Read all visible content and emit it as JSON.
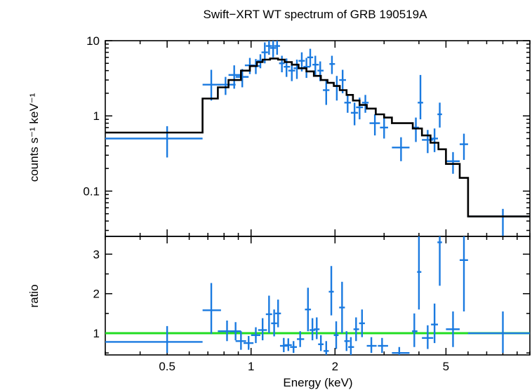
{
  "chart_data": {
    "type": "scatter",
    "title": "Swift−XRT WT spectrum of GRB 190519A",
    "xlabel": "Energy (keV)",
    "x_scale": "log",
    "xlim": [
      0.3,
      10
    ],
    "x_ticks": [
      {
        "v": 0.5,
        "label": "0.5"
      },
      {
        "v": 1,
        "label": "1"
      },
      {
        "v": 2,
        "label": "2"
      },
      {
        "v": 5,
        "label": "5"
      }
    ],
    "colors": {
      "data": "#1a7ae0",
      "model": "#000000",
      "unity": "#22dd22",
      "axes": "#000000"
    },
    "panels": [
      {
        "id": "spectrum",
        "ylabel": "counts s⁻¹ keV⁻¹",
        "y_scale": "log",
        "ylim": [
          0.025,
          10
        ],
        "y_ticks": [
          {
            "v": 0.1,
            "label": "0.1"
          },
          {
            "v": 1,
            "label": "1"
          },
          {
            "v": 10,
            "label": "10"
          }
        ],
        "data": [
          {
            "x": 0.5,
            "xlo": 0.3,
            "xhi": 0.67,
            "y": 0.5,
            "ylo": 0.28,
            "yhi": 0.73
          },
          {
            "x": 0.72,
            "xlo": 0.67,
            "xhi": 0.78,
            "y": 2.6,
            "ylo": 1.6,
            "yhi": 4.1
          },
          {
            "x": 0.81,
            "xlo": 0.76,
            "xhi": 0.88,
            "y": 2.6,
            "ylo": 1.9,
            "yhi": 3.3
          },
          {
            "x": 0.87,
            "xlo": 0.83,
            "xhi": 0.92,
            "y": 3.5,
            "ylo": 2.3,
            "yhi": 4.7
          },
          {
            "x": 0.93,
            "xlo": 0.88,
            "xhi": 0.98,
            "y": 3.3,
            "ylo": 2.4,
            "yhi": 4.2
          },
          {
            "x": 0.99,
            "xlo": 0.95,
            "xhi": 1.03,
            "y": 4.7,
            "ylo": 3.6,
            "yhi": 5.9
          },
          {
            "x": 1.04,
            "xlo": 1.01,
            "xhi": 1.08,
            "y": 4.6,
            "ylo": 3.6,
            "yhi": 5.7
          },
          {
            "x": 1.08,
            "xlo": 1.05,
            "xhi": 1.11,
            "y": 5.4,
            "ylo": 4.3,
            "yhi": 6.6
          },
          {
            "x": 1.12,
            "xlo": 1.09,
            "xhi": 1.15,
            "y": 7.0,
            "ylo": 5.0,
            "yhi": 9.5
          },
          {
            "x": 1.16,
            "xlo": 1.13,
            "xhi": 1.19,
            "y": 8.5,
            "ylo": 6.5,
            "yhi": 10.5
          },
          {
            "x": 1.2,
            "xlo": 1.17,
            "xhi": 1.23,
            "y": 8.0,
            "ylo": 6.0,
            "yhi": 10.3
          },
          {
            "x": 1.24,
            "xlo": 1.21,
            "xhi": 1.27,
            "y": 8.5,
            "ylo": 6.5,
            "yhi": 10.4
          },
          {
            "x": 1.29,
            "xlo": 1.26,
            "xhi": 1.32,
            "y": 5.0,
            "ylo": 3.8,
            "yhi": 6.3
          },
          {
            "x": 1.34,
            "xlo": 1.31,
            "xhi": 1.38,
            "y": 4.5,
            "ylo": 3.3,
            "yhi": 5.8
          },
          {
            "x": 1.4,
            "xlo": 1.36,
            "xhi": 1.44,
            "y": 4.0,
            "ylo": 2.9,
            "yhi": 5.3
          },
          {
            "x": 1.46,
            "xlo": 1.42,
            "xhi": 1.5,
            "y": 4.3,
            "ylo": 3.1,
            "yhi": 5.6
          },
          {
            "x": 1.52,
            "xlo": 1.48,
            "xhi": 1.56,
            "y": 5.4,
            "ylo": 3.9,
            "yhi": 7.0
          },
          {
            "x": 1.58,
            "xlo": 1.54,
            "xhi": 1.63,
            "y": 4.5,
            "ylo": 3.2,
            "yhi": 5.9
          },
          {
            "x": 1.63,
            "xlo": 1.59,
            "xhi": 1.67,
            "y": 6.0,
            "ylo": 4.5,
            "yhi": 7.8
          },
          {
            "x": 1.7,
            "xlo": 1.66,
            "xhi": 1.75,
            "y": 4.8,
            "ylo": 3.5,
            "yhi": 6.3
          },
          {
            "x": 1.77,
            "xlo": 1.73,
            "xhi": 1.82,
            "y": 4.0,
            "ylo": 2.9,
            "yhi": 5.3
          },
          {
            "x": 1.86,
            "xlo": 1.81,
            "xhi": 1.91,
            "y": 2.2,
            "ylo": 1.4,
            "yhi": 3.0
          },
          {
            "x": 1.95,
            "xlo": 1.91,
            "xhi": 2.0,
            "y": 4.9,
            "ylo": 3.6,
            "yhi": 6.3
          },
          {
            "x": 2.03,
            "xlo": 1.98,
            "xhi": 2.08,
            "y": 2.5,
            "ylo": 1.6,
            "yhi": 3.4
          },
          {
            "x": 2.13,
            "xlo": 2.07,
            "xhi": 2.19,
            "y": 3.0,
            "ylo": 2.0,
            "yhi": 4.1
          },
          {
            "x": 2.22,
            "xlo": 2.16,
            "xhi": 2.28,
            "y": 1.5,
            "ylo": 1.1,
            "yhi": 1.9
          },
          {
            "x": 2.35,
            "xlo": 2.28,
            "xhi": 2.42,
            "y": 1.1,
            "ylo": 0.75,
            "yhi": 1.5
          },
          {
            "x": 2.45,
            "xlo": 2.38,
            "xhi": 2.52,
            "y": 1.3,
            "ylo": 0.9,
            "yhi": 1.75
          },
          {
            "x": 2.57,
            "xlo": 2.5,
            "xhi": 2.64,
            "y": 1.5,
            "ylo": 1.1,
            "yhi": 1.9
          },
          {
            "x": 2.78,
            "xlo": 2.66,
            "xhi": 2.9,
            "y": 0.8,
            "ylo": 0.55,
            "yhi": 1.05
          },
          {
            "x": 3.0,
            "xlo": 2.9,
            "xhi": 3.1,
            "y": 0.7,
            "ylo": 0.5,
            "yhi": 0.95
          },
          {
            "x": 3.45,
            "xlo": 3.2,
            "xhi": 3.7,
            "y": 0.38,
            "ylo": 0.25,
            "yhi": 0.52
          },
          {
            "x": 3.9,
            "xlo": 3.8,
            "xhi": 4.0,
            "y": 0.7,
            "ylo": 0.45,
            "yhi": 0.95
          },
          {
            "x": 4.05,
            "xlo": 3.96,
            "xhi": 4.14,
            "y": 1.5,
            "ylo": 0.9,
            "yhi": 3.5
          },
          {
            "x": 4.3,
            "xlo": 4.1,
            "xhi": 4.5,
            "y": 0.48,
            "ylo": 0.32,
            "yhi": 0.65
          },
          {
            "x": 4.55,
            "xlo": 4.42,
            "xhi": 4.68,
            "y": 0.5,
            "ylo": 0.33,
            "yhi": 0.68
          },
          {
            "x": 4.75,
            "xlo": 4.66,
            "xhi": 4.84,
            "y": 1.05,
            "ylo": 0.7,
            "yhi": 1.5
          },
          {
            "x": 5.3,
            "xlo": 5.0,
            "xhi": 5.6,
            "y": 0.25,
            "ylo": 0.17,
            "yhi": 0.33
          },
          {
            "x": 5.8,
            "xlo": 5.6,
            "xhi": 6.0,
            "y": 0.42,
            "ylo": 0.26,
            "yhi": 0.58
          },
          {
            "x": 8.0,
            "xlo": 6.0,
            "xhi": 10.0,
            "y": 0.046,
            "ylo": 0.025,
            "yhi": 0.058
          }
        ],
        "model": [
          [
            0.3,
            0.6
          ],
          [
            0.67,
            0.6
          ],
          [
            0.67,
            1.7
          ],
          [
            0.76,
            1.7
          ],
          [
            0.76,
            2.4
          ],
          [
            0.83,
            2.4
          ],
          [
            0.83,
            3.0
          ],
          [
            0.92,
            3.0
          ],
          [
            0.92,
            4.0
          ],
          [
            0.99,
            4.0
          ],
          [
            0.99,
            4.6
          ],
          [
            1.05,
            4.6
          ],
          [
            1.05,
            5.2
          ],
          [
            1.1,
            5.2
          ],
          [
            1.1,
            5.6
          ],
          [
            1.17,
            5.6
          ],
          [
            1.17,
            5.8
          ],
          [
            1.25,
            5.8
          ],
          [
            1.25,
            5.6
          ],
          [
            1.32,
            5.6
          ],
          [
            1.32,
            5.2
          ],
          [
            1.4,
            5.2
          ],
          [
            1.4,
            4.8
          ],
          [
            1.48,
            4.8
          ],
          [
            1.48,
            4.3
          ],
          [
            1.58,
            4.3
          ],
          [
            1.58,
            3.9
          ],
          [
            1.68,
            3.9
          ],
          [
            1.68,
            3.4
          ],
          [
            1.78,
            3.4
          ],
          [
            1.78,
            3.0
          ],
          [
            1.88,
            3.0
          ],
          [
            1.88,
            2.75
          ],
          [
            1.98,
            2.75
          ],
          [
            1.98,
            2.5
          ],
          [
            2.08,
            2.5
          ],
          [
            2.08,
            2.2
          ],
          [
            2.2,
            2.2
          ],
          [
            2.2,
            1.9
          ],
          [
            2.32,
            1.9
          ],
          [
            2.32,
            1.6
          ],
          [
            2.45,
            1.6
          ],
          [
            2.45,
            1.4
          ],
          [
            2.6,
            1.4
          ],
          [
            2.6,
            1.25
          ],
          [
            2.8,
            1.25
          ],
          [
            2.8,
            1.05
          ],
          [
            3.0,
            1.05
          ],
          [
            3.0,
            0.95
          ],
          [
            3.2,
            0.95
          ],
          [
            3.2,
            0.8
          ],
          [
            3.8,
            0.8
          ],
          [
            3.8,
            0.68
          ],
          [
            4.1,
            0.68
          ],
          [
            4.1,
            0.55
          ],
          [
            4.4,
            0.55
          ],
          [
            4.4,
            0.44
          ],
          [
            4.7,
            0.44
          ],
          [
            4.7,
            0.36
          ],
          [
            5.0,
            0.36
          ],
          [
            5.0,
            0.23
          ],
          [
            5.6,
            0.23
          ],
          [
            5.6,
            0.15
          ],
          [
            6.0,
            0.15
          ],
          [
            6.0,
            0.046
          ],
          [
            10.0,
            0.046
          ]
        ]
      },
      {
        "id": "ratio",
        "ylabel": "ratio",
        "y_scale": "linear",
        "ylim": [
          0.45,
          3.45
        ],
        "y_ticks": [
          {
            "v": 1,
            "label": "1"
          },
          {
            "v": 2,
            "label": "2"
          },
          {
            "v": 3,
            "label": "3"
          }
        ],
        "unity_line": 1,
        "data": [
          {
            "x": 0.5,
            "xlo": 0.3,
            "xhi": 0.67,
            "y": 0.78,
            "ylo": 0.5,
            "yhi": 1.18
          },
          {
            "x": 0.72,
            "xlo": 0.67,
            "xhi": 0.78,
            "y": 1.58,
            "ylo": 0.98,
            "yhi": 2.27
          },
          {
            "x": 0.82,
            "xlo": 0.76,
            "xhi": 0.9,
            "y": 1.05,
            "ylo": 0.8,
            "yhi": 1.32
          },
          {
            "x": 0.88,
            "xlo": 0.84,
            "xhi": 0.92,
            "y": 1.05,
            "ylo": 0.82,
            "yhi": 1.28
          },
          {
            "x": 0.92,
            "xlo": 0.88,
            "xhi": 0.96,
            "y": 0.8,
            "ylo": 0.58,
            "yhi": 1.05
          },
          {
            "x": 0.98,
            "xlo": 0.94,
            "xhi": 1.02,
            "y": 0.75,
            "ylo": 0.58,
            "yhi": 0.93
          },
          {
            "x": 1.04,
            "xlo": 1.0,
            "xhi": 1.08,
            "y": 0.95,
            "ylo": 0.75,
            "yhi": 1.15
          },
          {
            "x": 1.1,
            "xlo": 1.06,
            "xhi": 1.14,
            "y": 1.08,
            "ylo": 0.82,
            "yhi": 1.38
          },
          {
            "x": 1.16,
            "xlo": 1.13,
            "xhi": 1.19,
            "y": 1.48,
            "ylo": 1.0,
            "yhi": 1.95
          },
          {
            "x": 1.21,
            "xlo": 1.18,
            "xhi": 1.24,
            "y": 1.25,
            "ylo": 0.92,
            "yhi": 1.6
          },
          {
            "x": 1.25,
            "xlo": 1.22,
            "xhi": 1.28,
            "y": 1.5,
            "ylo": 1.15,
            "yhi": 1.85
          },
          {
            "x": 1.31,
            "xlo": 1.27,
            "xhi": 1.35,
            "y": 0.68,
            "ylo": 0.52,
            "yhi": 0.88
          },
          {
            "x": 1.36,
            "xlo": 1.32,
            "xhi": 1.4,
            "y": 0.7,
            "ylo": 0.55,
            "yhi": 0.87
          },
          {
            "x": 1.42,
            "xlo": 1.38,
            "xhi": 1.46,
            "y": 0.65,
            "ylo": 0.5,
            "yhi": 0.8
          },
          {
            "x": 1.5,
            "xlo": 1.46,
            "xhi": 1.55,
            "y": 0.85,
            "ylo": 0.65,
            "yhi": 1.05
          },
          {
            "x": 1.6,
            "xlo": 1.56,
            "xhi": 1.64,
            "y": 1.6,
            "ylo": 1.05,
            "yhi": 2.15
          },
          {
            "x": 1.66,
            "xlo": 1.62,
            "xhi": 1.7,
            "y": 1.08,
            "ylo": 0.82,
            "yhi": 1.38
          },
          {
            "x": 1.72,
            "xlo": 1.68,
            "xhi": 1.76,
            "y": 1.1,
            "ylo": 0.85,
            "yhi": 1.4
          },
          {
            "x": 1.78,
            "xlo": 1.74,
            "xhi": 1.82,
            "y": 0.72,
            "ylo": 0.55,
            "yhi": 0.95
          },
          {
            "x": 1.86,
            "xlo": 1.82,
            "xhi": 1.9,
            "y": 0.55,
            "ylo": 0.45,
            "yhi": 0.8
          },
          {
            "x": 1.94,
            "xlo": 1.9,
            "xhi": 1.98,
            "y": 2.05,
            "ylo": 1.45,
            "yhi": 2.7
          },
          {
            "x": 2.02,
            "xlo": 1.98,
            "xhi": 2.06,
            "y": 0.95,
            "ylo": 0.6,
            "yhi": 1.3
          },
          {
            "x": 2.12,
            "xlo": 2.07,
            "xhi": 2.17,
            "y": 1.65,
            "ylo": 1.0,
            "yhi": 2.3
          },
          {
            "x": 2.2,
            "xlo": 2.16,
            "xhi": 2.26,
            "y": 0.8,
            "ylo": 0.55,
            "yhi": 1.05
          },
          {
            "x": 2.28,
            "xlo": 2.23,
            "xhi": 2.34,
            "y": 0.65,
            "ylo": 0.45,
            "yhi": 0.9
          },
          {
            "x": 2.38,
            "xlo": 2.33,
            "xhi": 2.44,
            "y": 1.1,
            "ylo": 0.8,
            "yhi": 1.4
          },
          {
            "x": 2.5,
            "xlo": 2.44,
            "xhi": 2.56,
            "y": 1.25,
            "ylo": 0.9,
            "yhi": 1.6
          },
          {
            "x": 2.7,
            "xlo": 2.6,
            "xhi": 2.82,
            "y": 0.68,
            "ylo": 0.5,
            "yhi": 0.9
          },
          {
            "x": 2.95,
            "xlo": 2.85,
            "xhi": 3.1,
            "y": 0.68,
            "ylo": 0.5,
            "yhi": 0.88
          },
          {
            "x": 3.4,
            "xlo": 3.2,
            "xhi": 3.7,
            "y": 0.5,
            "ylo": 0.45,
            "yhi": 0.65
          },
          {
            "x": 3.85,
            "xlo": 3.78,
            "xhi": 3.95,
            "y": 1.05,
            "ylo": 0.65,
            "yhi": 1.5
          },
          {
            "x": 4.0,
            "xlo": 3.94,
            "xhi": 4.08,
            "y": 2.55,
            "ylo": 1.6,
            "yhi": 3.45
          },
          {
            "x": 4.3,
            "xlo": 4.1,
            "xhi": 4.5,
            "y": 0.88,
            "ylo": 0.6,
            "yhi": 1.2
          },
          {
            "x": 4.55,
            "xlo": 4.42,
            "xhi": 4.68,
            "y": 1.22,
            "ylo": 0.75,
            "yhi": 1.75
          },
          {
            "x": 4.75,
            "xlo": 4.66,
            "xhi": 4.84,
            "y": 3.3,
            "ylo": 2.2,
            "yhi": 3.45
          },
          {
            "x": 5.3,
            "xlo": 5.0,
            "xhi": 5.6,
            "y": 1.1,
            "ylo": 0.65,
            "yhi": 1.55
          },
          {
            "x": 5.8,
            "xlo": 5.6,
            "xhi": 6.0,
            "y": 2.85,
            "ylo": 1.55,
            "yhi": 3.45
          },
          {
            "x": 8.0,
            "xlo": 6.0,
            "xhi": 10.0,
            "y": 1.0,
            "ylo": 0.5,
            "yhi": 1.55
          }
        ]
      }
    ]
  }
}
